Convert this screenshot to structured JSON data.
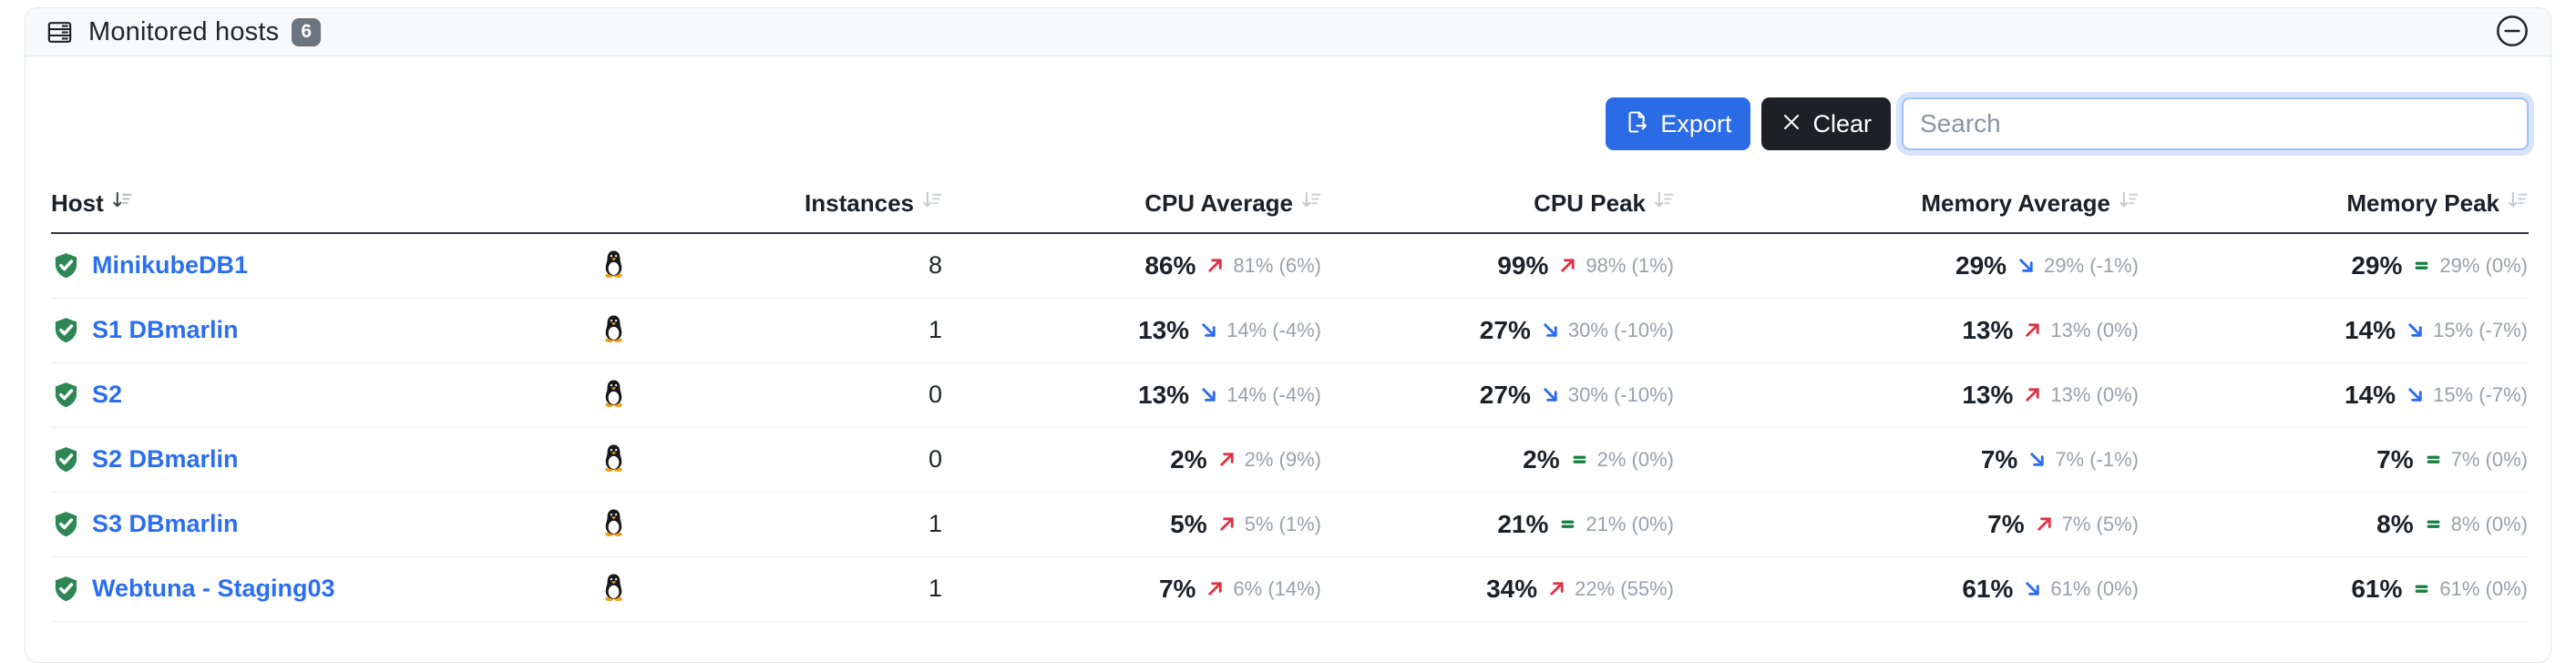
{
  "panel": {
    "title": "Monitored hosts",
    "count": "6"
  },
  "toolbar": {
    "export_label": "Export",
    "clear_label": "Clear",
    "search_placeholder": "Search",
    "search_value": ""
  },
  "colors": {
    "link": "#2b6ff0",
    "trend-up": "#dc3545",
    "trend-down": "#2b6cf0",
    "trend-flat": "#15803d",
    "export-bg": "#2b6be6",
    "clear-bg": "#1d2126",
    "badge-bg": "#6c757d",
    "shield": "#2d8653",
    "header-bg": "#f8f9fa",
    "border": "#e3e6ea",
    "subtext": "#9aa1a8",
    "text": "#212529"
  },
  "table": {
    "columns": [
      {
        "label": "Host",
        "sortable": true,
        "active_sort": true
      },
      {
        "label": "Instances",
        "sortable": true
      },
      {
        "label": "CPU Average",
        "sortable": true
      },
      {
        "label": "CPU Peak",
        "sortable": true
      },
      {
        "label": "Memory Average",
        "sortable": true
      },
      {
        "label": "Memory Peak",
        "sortable": true
      }
    ],
    "rows": [
      {
        "host": "MinikubeDB1",
        "status_icon": "shield-check",
        "os_icon": "linux-tux",
        "instances": "8",
        "cpu_avg": {
          "value": "86%",
          "trend": "up",
          "prev": "81%",
          "change": "(6%)"
        },
        "cpu_peak": {
          "value": "99%",
          "trend": "up",
          "prev": "98%",
          "change": "(1%)"
        },
        "mem_avg": {
          "value": "29%",
          "trend": "down",
          "prev": "29%",
          "change": "(-1%)"
        },
        "mem_peak": {
          "value": "29%",
          "trend": "flat",
          "prev": "29%",
          "change": "(0%)"
        }
      },
      {
        "host": "S1 DBmarlin",
        "status_icon": "shield-check",
        "os_icon": "linux-tux",
        "instances": "1",
        "cpu_avg": {
          "value": "13%",
          "trend": "down",
          "prev": "14%",
          "change": "(-4%)"
        },
        "cpu_peak": {
          "value": "27%",
          "trend": "down",
          "prev": "30%",
          "change": "(-10%)"
        },
        "mem_avg": {
          "value": "13%",
          "trend": "up",
          "prev": "13%",
          "change": "(0%)"
        },
        "mem_peak": {
          "value": "14%",
          "trend": "down",
          "prev": "15%",
          "change": "(-7%)"
        }
      },
      {
        "host": "S2",
        "status_icon": "shield-check",
        "os_icon": "linux-tux",
        "instances": "0",
        "cpu_avg": {
          "value": "13%",
          "trend": "down",
          "prev": "14%",
          "change": "(-4%)"
        },
        "cpu_peak": {
          "value": "27%",
          "trend": "down",
          "prev": "30%",
          "change": "(-10%)"
        },
        "mem_avg": {
          "value": "13%",
          "trend": "up",
          "prev": "13%",
          "change": "(0%)"
        },
        "mem_peak": {
          "value": "14%",
          "trend": "down",
          "prev": "15%",
          "change": "(-7%)"
        }
      },
      {
        "host": "S2 DBmarlin",
        "status_icon": "shield-check",
        "os_icon": "linux-tux",
        "instances": "0",
        "cpu_avg": {
          "value": "2%",
          "trend": "up",
          "prev": "2%",
          "change": "(9%)"
        },
        "cpu_peak": {
          "value": "2%",
          "trend": "flat",
          "prev": "2%",
          "change": "(0%)"
        },
        "mem_avg": {
          "value": "7%",
          "trend": "down",
          "prev": "7%",
          "change": "(-1%)"
        },
        "mem_peak": {
          "value": "7%",
          "trend": "flat",
          "prev": "7%",
          "change": "(0%)"
        }
      },
      {
        "host": "S3 DBmarlin",
        "status_icon": "shield-check",
        "os_icon": "linux-tux",
        "instances": "1",
        "cpu_avg": {
          "value": "5%",
          "trend": "up",
          "prev": "5%",
          "change": "(1%)"
        },
        "cpu_peak": {
          "value": "21%",
          "trend": "flat",
          "prev": "21%",
          "change": "(0%)"
        },
        "mem_avg": {
          "value": "7%",
          "trend": "up",
          "prev": "7%",
          "change": "(5%)"
        },
        "mem_peak": {
          "value": "8%",
          "trend": "flat",
          "prev": "8%",
          "change": "(0%)"
        }
      },
      {
        "host": "Webtuna - Staging03",
        "status_icon": "shield-check",
        "os_icon": "linux-tux",
        "instances": "1",
        "cpu_avg": {
          "value": "7%",
          "trend": "up",
          "prev": "6%",
          "change": "(14%)"
        },
        "cpu_peak": {
          "value": "34%",
          "trend": "up",
          "prev": "22%",
          "change": "(55%)"
        },
        "mem_avg": {
          "value": "61%",
          "trend": "down",
          "prev": "61%",
          "change": "(0%)"
        },
        "mem_peak": {
          "value": "61%",
          "trend": "flat",
          "prev": "61%",
          "change": "(0%)"
        }
      }
    ]
  }
}
